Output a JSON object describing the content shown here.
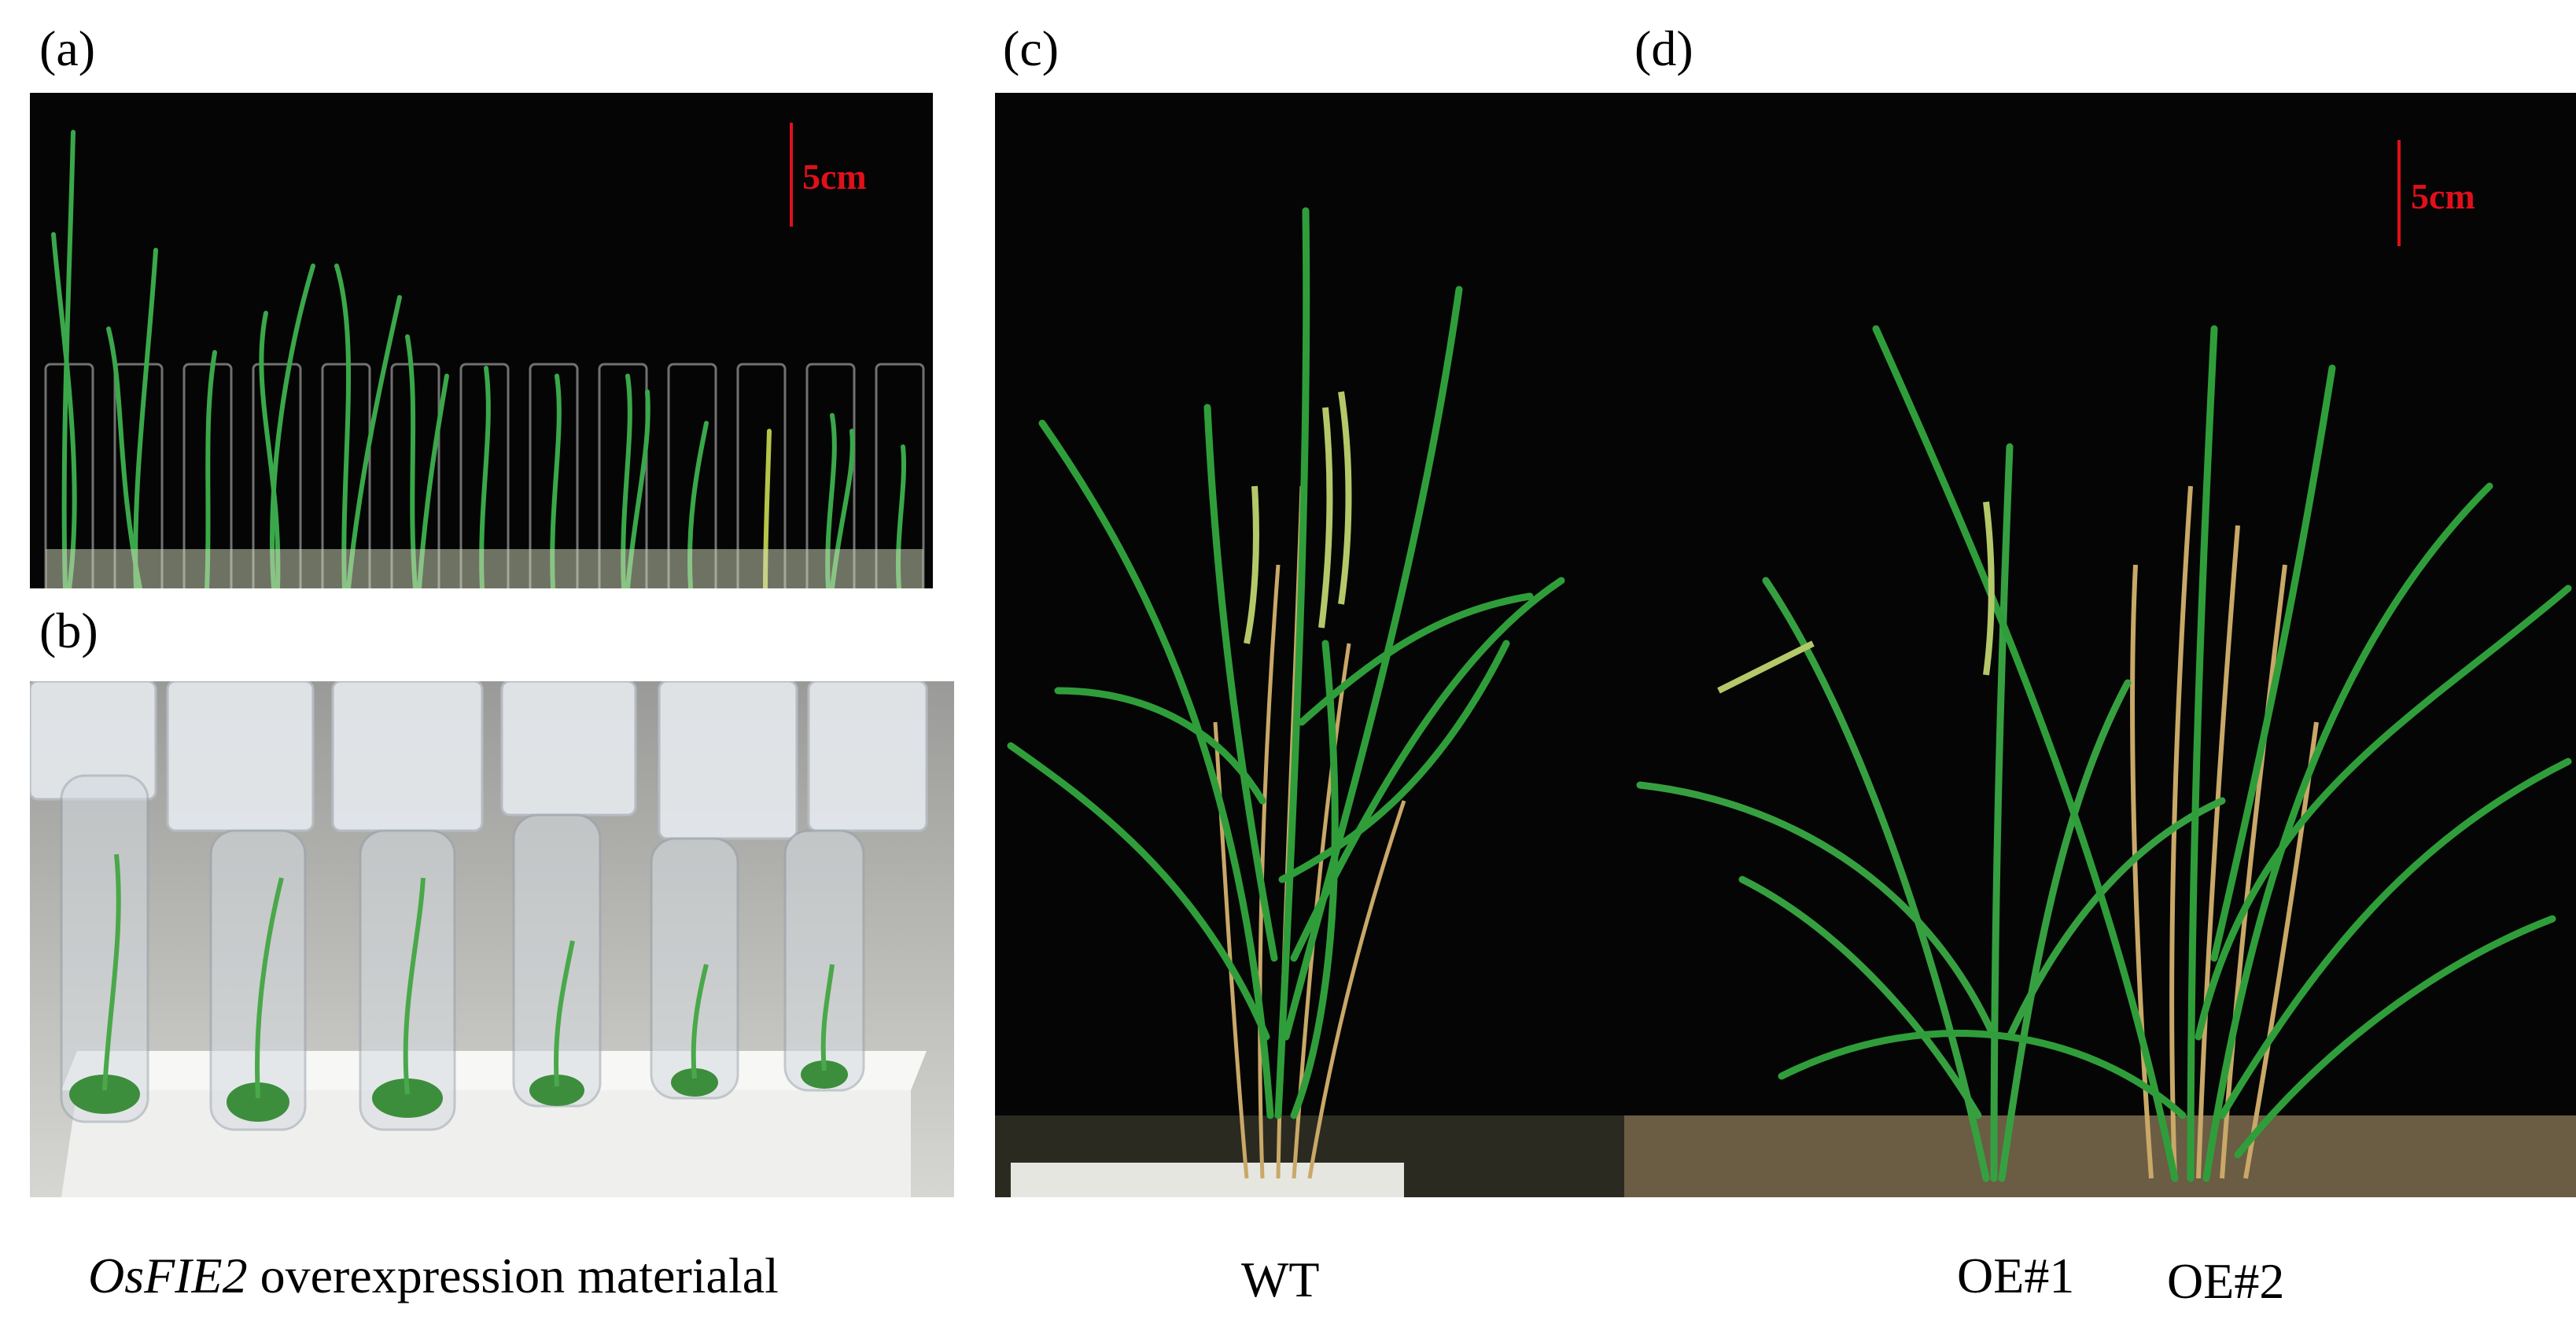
{
  "panels": {
    "a": {
      "label": "(a)",
      "scale_bar_label": "5cm"
    },
    "b": {
      "label": "(b)"
    },
    "c": {
      "label": "(c)"
    },
    "d": {
      "label": "(d)",
      "scale_bar_label": "5cm"
    }
  },
  "captions": {
    "material_gene": "OsFIE2",
    "material_rest": " overexpression materialal",
    "wt": "WT",
    "oe1": "OE#1",
    "oe2": "OE#2"
  },
  "colors": {
    "scale_bar": "#e0101a",
    "background_dark": "#050505",
    "leaf_green": "#2f9e3a",
    "straw": "#c9a868"
  }
}
